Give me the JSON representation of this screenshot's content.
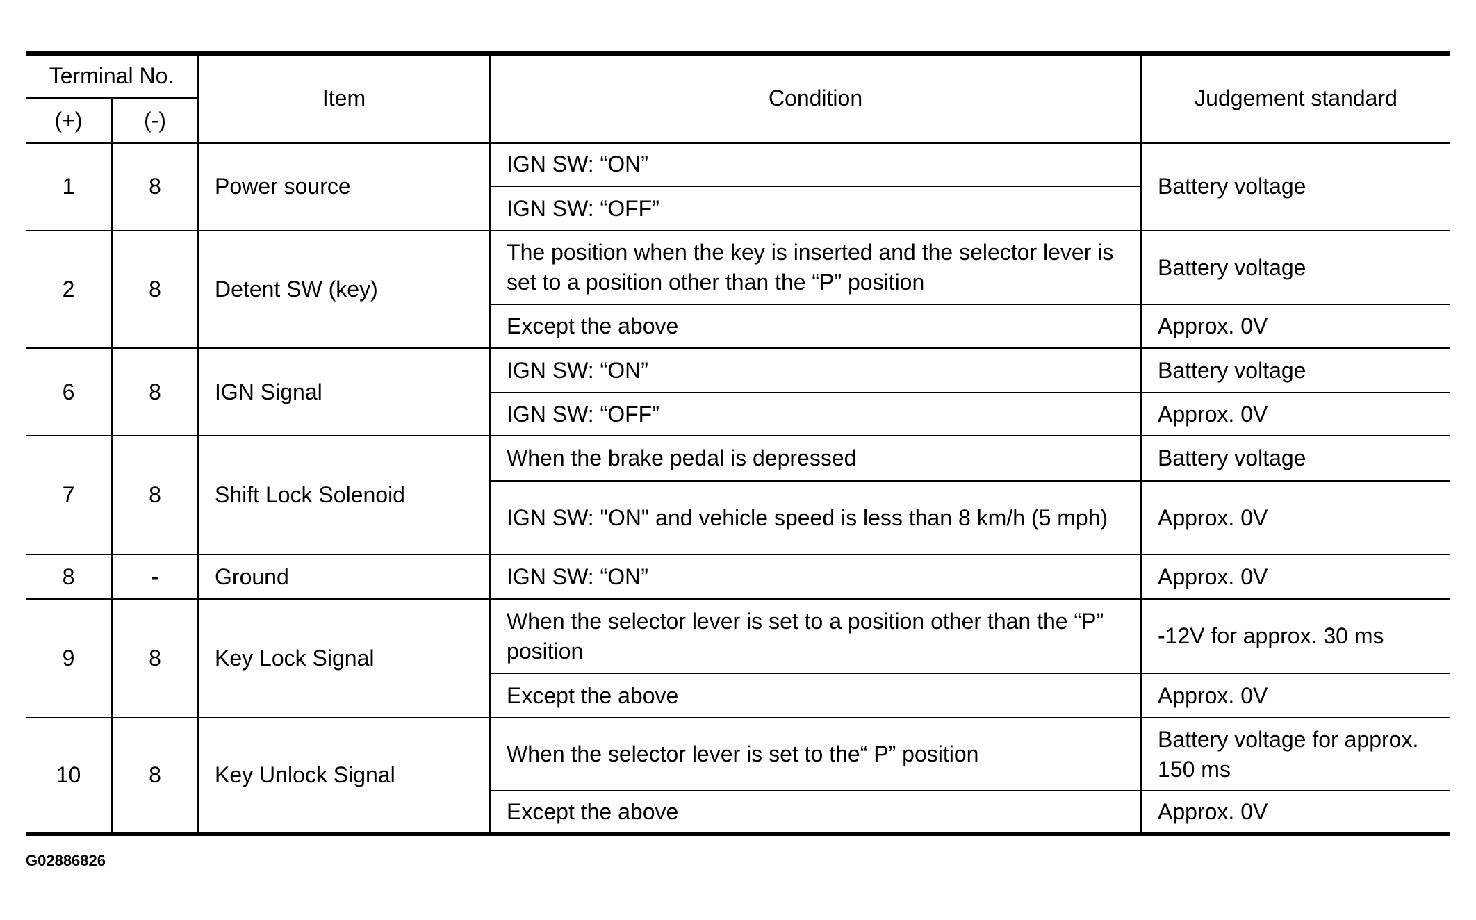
{
  "header": {
    "terminal_no": "Terminal No.",
    "plus": "(+)",
    "minus": "(-)",
    "item": "Item",
    "condition": "Condition",
    "judgement": "Judgement standard"
  },
  "rows": [
    {
      "plus": "1",
      "minus": "8",
      "item": "Power source",
      "merged_judgement": "Battery voltage",
      "conditions": [
        {
          "condition": "IGN SW: “ON”"
        },
        {
          "condition": "IGN SW: “OFF”"
        }
      ]
    },
    {
      "plus": "2",
      "minus": "8",
      "item": "Detent SW (key)",
      "conditions": [
        {
          "condition": "The position when the key is inserted and  the selector lever is set to a position other than the “P” position",
          "judgement": "Battery voltage"
        },
        {
          "condition": "Except the above",
          "judgement": "Approx. 0V"
        }
      ]
    },
    {
      "plus": "6",
      "minus": "8",
      "item": "IGN Signal",
      "conditions": [
        {
          "condition": "IGN SW: “ON”",
          "judgement": "Battery voltage"
        },
        {
          "condition": "IGN SW: “OFF”",
          "judgement": "Approx. 0V"
        }
      ]
    },
    {
      "plus": "7",
      "minus": "8",
      "item": "Shift Lock Solenoid",
      "conditions": [
        {
          "condition": "When the brake pedal is depressed",
          "judgement": "Battery voltage"
        },
        {
          "condition": "IGN SW: \"ON\" and vehicle speed is less than 8 km/h (5 mph)",
          "judgement": "Approx. 0V"
        }
      ]
    },
    {
      "plus": "8",
      "minus": "-",
      "item": "Ground",
      "conditions": [
        {
          "condition": "IGN SW: “ON”",
          "judgement": "Approx. 0V"
        }
      ]
    },
    {
      "plus": "9",
      "minus": "8",
      "item": "Key Lock Signal",
      "conditions": [
        {
          "condition": "When the selector lever is set to a position other than the “P” position",
          "judgement": "-12V for approx. 30 ms"
        },
        {
          "condition": "Except the above",
          "judgement": "Approx. 0V"
        }
      ]
    },
    {
      "plus": "10",
      "minus": "8",
      "item": "Key Unlock Signal",
      "conditions": [
        {
          "condition": "When the selector lever is set to the“ P” position",
          "judgement": "Battery voltage for approx. 150 ms"
        },
        {
          "condition": "Except the above",
          "judgement": "Approx. 0V"
        }
      ]
    }
  ],
  "figure_id": "G02886826"
}
